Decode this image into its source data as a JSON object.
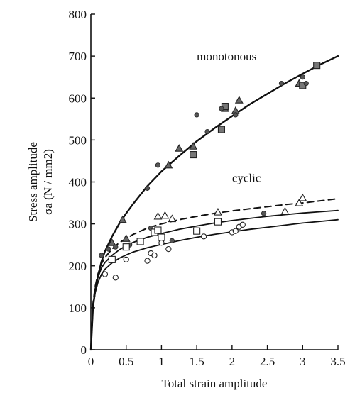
{
  "chart_data": {
    "type": "scatter",
    "title": "",
    "xlabel": "Total strain amplitude",
    "ylabel_line1": "Stress amplitude",
    "ylabel_line2": "σa (N / mm2)",
    "xlim": [
      0,
      3.5
    ],
    "ylim": [
      0,
      800
    ],
    "x_ticks": [
      0,
      0.5,
      1,
      1.5,
      2,
      2.5,
      3,
      3.5
    ],
    "x_tick_labels": [
      "0",
      "0.5",
      "1",
      "1.5",
      "2",
      "2.5",
      "3",
      "3.5"
    ],
    "y_ticks": [
      0,
      100,
      200,
      300,
      400,
      500,
      600,
      700,
      800
    ],
    "y_tick_labels": [
      "0",
      "100",
      "200",
      "300",
      "400",
      "500",
      "600",
      "700",
      "800"
    ],
    "grid": false,
    "annotations": [
      {
        "text": "monotonous",
        "x": 1.5,
        "y": 690
      },
      {
        "text": "cyclic",
        "x": 2.0,
        "y": 400
      }
    ],
    "curves": [
      {
        "id": "monotonous",
        "style": "solid",
        "width": 2.4,
        "color": "#111111",
        "x": [
          0,
          0.03,
          0.06,
          0.1,
          0.15,
          0.2,
          0.3,
          0.4,
          0.5,
          0.6,
          0.8,
          1.0,
          1.25,
          1.5,
          1.75,
          2.0,
          2.25,
          2.5,
          2.75,
          3.0,
          3.25,
          3.5
        ],
        "y": [
          0,
          100,
          140,
          175,
          210,
          235,
          270,
          300,
          325,
          348,
          390,
          425,
          462,
          497,
          528,
          557,
          585,
          610,
          635,
          658,
          680,
          700
        ]
      },
      {
        "id": "cyclic-upper",
        "style": "dashed",
        "width": 2,
        "color": "#111111",
        "x": [
          0,
          0.03,
          0.06,
          0.1,
          0.15,
          0.2,
          0.3,
          0.4,
          0.5,
          0.6,
          0.8,
          1.0,
          1.25,
          1.5,
          1.75,
          2.0,
          2.25,
          2.5,
          2.75,
          3.0,
          3.25,
          3.5
        ],
        "y": [
          0,
          110,
          150,
          180,
          205,
          220,
          240,
          255,
          265,
          275,
          290,
          300,
          310,
          318,
          325,
          331,
          336,
          341,
          346,
          350,
          355,
          360
        ]
      },
      {
        "id": "cyclic-middle",
        "style": "solid",
        "width": 1.8,
        "color": "#111111",
        "x": [
          0,
          0.03,
          0.06,
          0.1,
          0.15,
          0.2,
          0.3,
          0.4,
          0.5,
          0.6,
          0.8,
          1.0,
          1.25,
          1.5,
          1.75,
          2.0,
          2.25,
          2.5,
          2.75,
          3.0,
          3.25,
          3.5
        ],
        "y": [
          0,
          105,
          145,
          172,
          195,
          208,
          225,
          238,
          248,
          256,
          268,
          277,
          287,
          295,
          302,
          308,
          313,
          318,
          322,
          326,
          329,
          332
        ]
      },
      {
        "id": "cyclic-lower",
        "style": "solid",
        "width": 1.8,
        "color": "#111111",
        "x": [
          0,
          0.03,
          0.06,
          0.1,
          0.15,
          0.2,
          0.3,
          0.4,
          0.5,
          0.6,
          0.8,
          1.0,
          1.25,
          1.5,
          1.75,
          2.0,
          2.25,
          2.5,
          2.75,
          3.0,
          3.25,
          3.5
        ],
        "y": [
          0,
          100,
          135,
          160,
          180,
          192,
          207,
          218,
          226,
          233,
          243,
          251,
          260,
          268,
          275,
          281,
          287,
          292,
          297,
          302,
          306,
          310
        ]
      }
    ],
    "series": [
      {
        "id": "triangles",
        "marker": "triangle",
        "fill": "#666666",
        "x": [
          0.3,
          0.45,
          0.5,
          1.1,
          1.25,
          1.45,
          1.9,
          2.05,
          2.1,
          2.95
        ],
        "y": [
          255,
          310,
          265,
          440,
          480,
          485,
          575,
          570,
          595,
          635
        ]
      },
      {
        "id": "filled-squares",
        "marker": "square",
        "fill": "#777777",
        "x": [
          1.45,
          1.85,
          1.9,
          3.0,
          3.2
        ],
        "y": [
          465,
          525,
          580,
          630,
          678
        ]
      },
      {
        "id": "dots",
        "marker": "dot",
        "fill": "#555555",
        "x": [
          0.15,
          0.25,
          0.35,
          0.55,
          0.8,
          0.85,
          0.95,
          1.15,
          1.5,
          1.65,
          1.85,
          2.05,
          2.45,
          2.7,
          3.0,
          3.05
        ],
        "y": [
          225,
          240,
          245,
          250,
          385,
          290,
          440,
          260,
          560,
          520,
          575,
          560,
          325,
          635,
          650,
          635
        ]
      },
      {
        "id": "open-triangles",
        "marker": "open-triangle",
        "x": [
          0.95,
          1.05,
          1.15,
          1.8,
          2.75,
          2.95,
          3.0
        ],
        "y": [
          318,
          320,
          312,
          328,
          330,
          350,
          362
        ]
      },
      {
        "id": "open-squares",
        "marker": "open-square",
        "x": [
          0.3,
          0.5,
          0.7,
          0.9,
          0.95,
          1.0,
          1.5,
          1.8
        ],
        "y": [
          215,
          245,
          258,
          280,
          285,
          268,
          283,
          305
        ]
      },
      {
        "id": "open-circles",
        "marker": "open-circle",
        "x": [
          0.2,
          0.35,
          0.5,
          0.8,
          0.85,
          0.9,
          1.0,
          1.1,
          1.6,
          2.0,
          2.05,
          2.1,
          2.15
        ],
        "y": [
          180,
          172,
          215,
          212,
          230,
          225,
          255,
          240,
          270,
          280,
          283,
          293,
          298
        ]
      }
    ]
  }
}
